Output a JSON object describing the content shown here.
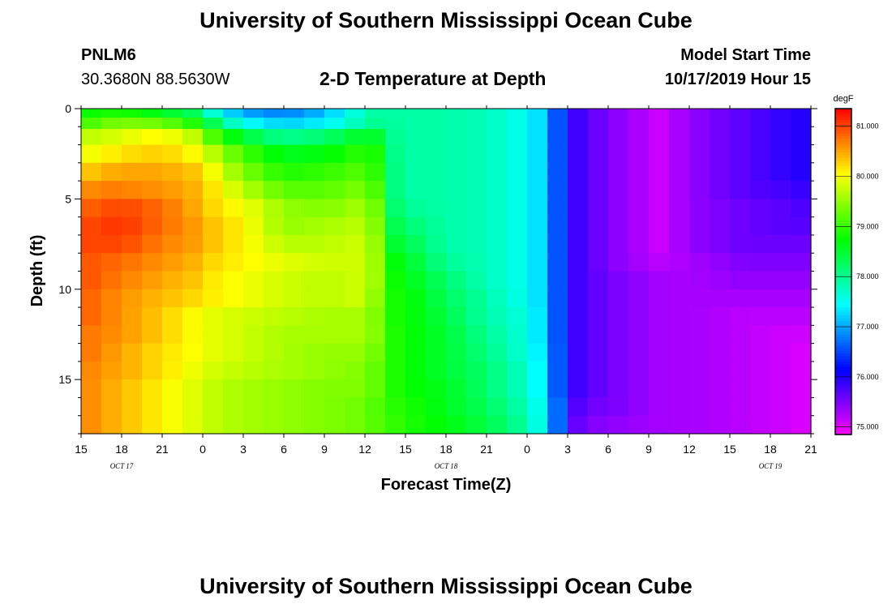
{
  "header": {
    "title_top": "University of Southern Mississippi Ocean Cube",
    "station": "PNLM6",
    "coords": "30.3680N 88.5630W",
    "subtitle": "2-D Temperature at Depth",
    "model_label": "Model Start Time",
    "model_time": "10/17/2019 Hour 15",
    "title_bottom": "University of Southern Mississippi Ocean Cube"
  },
  "chart_data": {
    "type": "heatmap",
    "title": "2-D Temperature at Depth",
    "xlabel": "Forecast Time(Z)",
    "ylabel": "Depth (ft)",
    "x_tick_labels": [
      "15",
      "18",
      "21",
      "0",
      "3",
      "6",
      "9",
      "12",
      "15",
      "18",
      "21",
      "0",
      "3",
      "6",
      "9",
      "12",
      "15",
      "18",
      "21"
    ],
    "x_range_hours": [
      0,
      54
    ],
    "date_labels": [
      "OCT 17",
      "OCT 18",
      "OCT 19"
    ],
    "y_ticks": [
      0,
      5,
      10,
      15
    ],
    "ylim": [
      18,
      0
    ],
    "colorbar": {
      "unit": "degF",
      "tick_labels": [
        "81.000",
        "80.000",
        "79.000",
        "78.000",
        "77.000",
        "76.000",
        "75.000"
      ],
      "range": [
        74.85,
        81.35
      ]
    },
    "depth_levels": [
      0.25,
      0.75,
      1.5,
      2.5,
      3.5,
      4.5,
      5.5,
      6.5,
      7.5,
      8.5,
      9.5,
      10.5,
      11.5,
      12.5,
      13.5,
      14.5,
      15.5,
      16.5,
      17.5
    ],
    "hour_knots": [
      0,
      1,
      3,
      6,
      9,
      10,
      12,
      15,
      18,
      21,
      21.6,
      22.5,
      24,
      27,
      30,
      33,
      34.5,
      35.5,
      36,
      36.3,
      37.5,
      40,
      43,
      45,
      49,
      52,
      54
    ],
    "values_degF": [
      [
        78.8,
        78.8,
        78.9,
        78.6,
        78.2,
        77.5,
        77.0,
        76.8,
        77.1,
        77.8,
        77.9,
        77.9,
        77.9,
        77.9,
        77.8,
        77.5,
        77.1,
        76.4,
        76.1,
        75.9,
        75.7,
        75.4,
        75.1,
        75.4,
        75.7,
        75.9,
        76.0
      ],
      [
        79.0,
        79.2,
        79.4,
        79.3,
        78.8,
        78.2,
        77.5,
        77.2,
        77.4,
        77.9,
        78.0,
        78.0,
        77.9,
        77.9,
        77.8,
        77.5,
        77.1,
        76.4,
        76.1,
        75.9,
        75.7,
        75.4,
        75.1,
        75.4,
        75.7,
        75.9,
        76.0
      ],
      [
        79.9,
        79.7,
        79.9,
        80.1,
        79.6,
        79.0,
        78.5,
        78.0,
        78.2,
        78.6,
        78.6,
        78.1,
        77.9,
        77.9,
        77.8,
        77.5,
        77.1,
        76.4,
        76.1,
        75.9,
        75.7,
        75.4,
        75.1,
        75.4,
        75.7,
        75.9,
        76.0
      ],
      [
        80.0,
        80.0,
        80.2,
        80.3,
        80.0,
        79.6,
        79.1,
        78.6,
        78.7,
        79.0,
        79.0,
        78.2,
        77.9,
        77.9,
        77.8,
        77.5,
        77.1,
        76.4,
        76.1,
        75.9,
        75.7,
        75.4,
        75.1,
        75.4,
        75.7,
        75.9,
        76.0
      ],
      [
        80.2,
        80.4,
        80.5,
        80.5,
        80.3,
        79.9,
        79.4,
        78.9,
        79.0,
        79.2,
        79.1,
        78.3,
        77.9,
        77.9,
        77.8,
        77.5,
        77.1,
        76.4,
        76.1,
        75.9,
        75.7,
        75.4,
        75.1,
        75.4,
        75.7,
        75.9,
        76.0
      ],
      [
        80.5,
        80.7,
        80.7,
        80.6,
        80.4,
        80.1,
        79.7,
        79.2,
        79.2,
        79.4,
        79.3,
        78.3,
        77.9,
        77.9,
        77.8,
        77.5,
        77.1,
        76.4,
        76.1,
        75.9,
        75.7,
        75.4,
        75.1,
        75.4,
        75.7,
        75.8,
        75.9
      ],
      [
        80.8,
        80.9,
        81.0,
        80.8,
        80.4,
        80.2,
        80.0,
        79.5,
        79.4,
        79.6,
        79.5,
        78.4,
        78.0,
        77.9,
        77.8,
        77.5,
        77.1,
        76.4,
        76.1,
        75.9,
        75.7,
        75.4,
        75.1,
        75.4,
        75.6,
        75.7,
        75.8
      ],
      [
        81.0,
        81.0,
        81.1,
        80.8,
        80.5,
        80.3,
        80.1,
        79.5,
        79.6,
        79.7,
        79.6,
        78.5,
        78.2,
        77.9,
        77.8,
        77.5,
        77.1,
        76.4,
        76.1,
        75.9,
        75.7,
        75.4,
        75.1,
        75.4,
        75.6,
        75.7,
        75.7
      ],
      [
        81.0,
        81.0,
        81.0,
        80.7,
        80.5,
        80.3,
        80.1,
        79.7,
        79.7,
        79.8,
        79.7,
        78.6,
        78.4,
        77.9,
        77.8,
        77.5,
        77.1,
        76.4,
        76.1,
        75.9,
        75.7,
        75.4,
        75.1,
        75.4,
        75.6,
        75.6,
        75.6
      ],
      [
        80.9,
        80.9,
        80.8,
        80.6,
        80.4,
        80.2,
        80.1,
        79.9,
        79.8,
        79.8,
        79.7,
        78.8,
        78.6,
        78.0,
        77.8,
        77.5,
        77.1,
        76.4,
        76.1,
        75.9,
        75.7,
        75.4,
        75.2,
        75.3,
        75.5,
        75.5,
        75.5
      ],
      [
        80.9,
        80.9,
        80.7,
        80.5,
        80.3,
        80.1,
        80.0,
        79.8,
        79.7,
        79.8,
        79.7,
        78.9,
        78.7,
        78.2,
        77.8,
        77.5,
        77.1,
        76.4,
        76.1,
        75.9,
        75.7,
        75.5,
        75.3,
        75.3,
        75.4,
        75.4,
        75.4
      ],
      [
        80.9,
        80.8,
        80.6,
        80.4,
        80.2,
        80.1,
        80.0,
        79.8,
        79.7,
        79.8,
        79.6,
        78.9,
        78.8,
        78.3,
        77.9,
        77.5,
        77.1,
        76.4,
        76.1,
        75.9,
        75.7,
        75.5,
        75.3,
        75.3,
        75.3,
        75.3,
        75.3
      ],
      [
        80.9,
        80.8,
        80.6,
        80.3,
        80.0,
        79.9,
        79.8,
        79.7,
        79.6,
        79.6,
        79.5,
        78.9,
        78.8,
        78.4,
        77.9,
        77.6,
        77.1,
        76.4,
        76.1,
        75.9,
        75.7,
        75.5,
        75.3,
        75.3,
        75.2,
        75.2,
        75.2
      ],
      [
        80.8,
        80.7,
        80.6,
        80.3,
        80.0,
        79.9,
        79.8,
        79.6,
        79.6,
        79.6,
        79.5,
        79.0,
        78.8,
        78.5,
        78.0,
        77.6,
        77.1,
        76.4,
        76.1,
        75.9,
        75.7,
        75.5,
        75.3,
        75.3,
        75.2,
        75.1,
        75.1
      ],
      [
        80.8,
        80.7,
        80.5,
        80.2,
        80.0,
        79.9,
        79.8,
        79.6,
        79.5,
        79.5,
        79.4,
        79.0,
        78.8,
        78.5,
        78.1,
        77.6,
        77.2,
        76.4,
        76.1,
        75.9,
        75.7,
        75.5,
        75.3,
        75.3,
        75.2,
        75.1,
        75.0
      ],
      [
        80.8,
        80.6,
        80.5,
        80.2,
        79.9,
        79.8,
        79.7,
        79.6,
        79.5,
        79.4,
        79.3,
        79.0,
        78.8,
        78.5,
        78.2,
        77.7,
        77.2,
        76.4,
        76.1,
        75.9,
        75.7,
        75.5,
        75.3,
        75.3,
        75.2,
        75.1,
        75.0
      ],
      [
        80.7,
        80.6,
        80.4,
        80.1,
        79.8,
        79.7,
        79.6,
        79.5,
        79.4,
        79.4,
        79.3,
        79.0,
        78.8,
        78.6,
        78.2,
        77.7,
        77.2,
        76.4,
        76.1,
        75.9,
        75.7,
        75.5,
        75.3,
        75.3,
        75.2,
        75.1,
        75.0
      ],
      [
        80.7,
        80.6,
        80.4,
        80.1,
        79.8,
        79.7,
        79.6,
        79.5,
        79.4,
        79.3,
        79.2,
        79.0,
        78.9,
        78.6,
        78.3,
        77.8,
        77.3,
        76.5,
        76.1,
        75.8,
        75.6,
        75.5,
        75.3,
        75.3,
        75.2,
        75.1,
        75.0
      ],
      [
        80.7,
        80.6,
        80.4,
        80.1,
        79.8,
        79.7,
        79.6,
        79.5,
        79.4,
        79.3,
        79.2,
        79.1,
        78.9,
        78.7,
        78.4,
        77.9,
        77.3,
        76.5,
        76.0,
        75.7,
        75.5,
        75.4,
        75.3,
        75.3,
        75.2,
        75.1,
        75.0
      ]
    ]
  }
}
